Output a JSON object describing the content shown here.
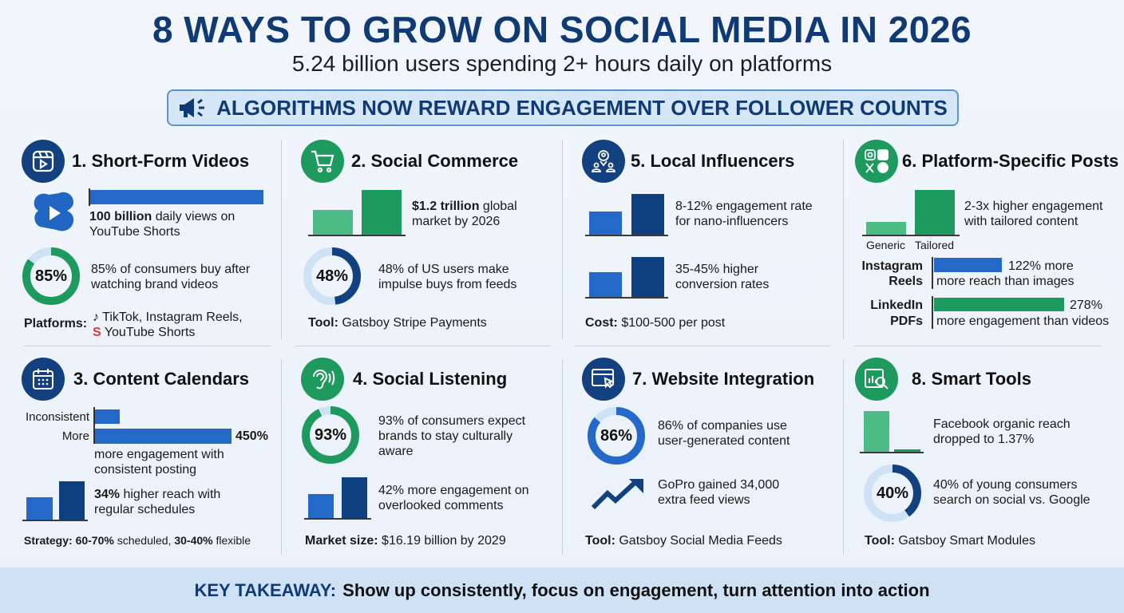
{
  "header": {
    "title": "8 WAYS TO GROW ON SOCIAL MEDIA IN 2026",
    "subtitle": "5.24 billion users spending 2+ hours daily on platforms",
    "banner": "ALGORITHMS NOW REWARD ENGAGEMENT OVER FOLLOWER COUNTS",
    "banner_icon": "megaphone-icon"
  },
  "colors": {
    "navy": "#13407f",
    "blue": "#2468c8",
    "green": "#1f9a5f",
    "light_green": "#4dbb86",
    "track": "#cfe2f5"
  },
  "cards": {
    "c1": {
      "title": "1. Short-Form Videos",
      "icon": "video-reel-icon",
      "stat1_bold": "100 billion",
      "stat1_rest": " daily views on",
      "stat1_line2": "YouTube Shorts",
      "donut_pct": 85,
      "donut_label": "85%",
      "stat2_l1": "85% of consumers buy after",
      "stat2_l2": "watching brand videos",
      "platforms_label": "Platforms:",
      "platforms_l1": "TikTok, Instagram Reels,",
      "platforms_l2": "YouTube Shorts"
    },
    "c2": {
      "title": "2. Social Commerce",
      "icon": "shopping-cart-icon",
      "stat1_bold": "$1.2 trillion",
      "stat1_rest": " global",
      "stat1_line2": "market by 2026",
      "donut_pct": 48,
      "donut_label": "48%",
      "stat2_l1": "48% of US users make",
      "stat2_l2": "impulse buys from feeds",
      "tool_label": "Tool:",
      "tool_value": " Gatsboy Stripe Payments"
    },
    "c3": {
      "title": "3. Content Calendars",
      "icon": "calendar-icon",
      "bar1_label": "Inconsistent",
      "bar2_label": "More",
      "bar2_value": "450%",
      "stat1_l1": "more engagement with",
      "stat1_l2": "consistent posting",
      "stat2_bold": "34%",
      "stat2_rest": " higher reach with",
      "stat2_l2": "regular schedules",
      "strategy_label": "Strategy:",
      "strategy_b1": " 60-70%",
      "strategy_t1": " scheduled, ",
      "strategy_b2": "30-40%",
      "strategy_t2": " flexible"
    },
    "c4": {
      "title": "4. Social Listening",
      "icon": "ear-icon",
      "donut_pct": 93,
      "donut_label": "93%",
      "stat1_l1": "93% of consumers expect",
      "stat1_l2": "brands to stay culturally",
      "stat1_l3": "aware",
      "stat2_l1": "42% more engagement on",
      "stat2_l2": "overlooked comments",
      "market_label": "Market size:",
      "market_value": " $16.19 billion by 2029"
    },
    "c5": {
      "title": "5. Local Influencers",
      "icon": "network-people-icon",
      "stat1_l1": "8-12% engagement rate",
      "stat1_l2": "for nano-influencers",
      "stat2_l1": "35-45% higher",
      "stat2_l2": "conversion rates",
      "cost_label": "Cost:",
      "cost_value": " $100-500 per post"
    },
    "c6": {
      "title": "6. Platform-Specific Posts",
      "icon": "social-logos-icon",
      "bar1_label": "Generic",
      "bar2_label": "Tailored",
      "stat1_l1": "2-3x higher engagement",
      "stat1_l2": "with tailored content",
      "ig_l1": "Instagram",
      "ig_l2": "Reels",
      "ig_value": "122% more",
      "ig_desc": "more reach than images",
      "li_l1": "LinkedIn",
      "li_l2": "PDFs",
      "li_value": "278%",
      "li_desc": "more engagement than videos"
    },
    "c7": {
      "title": "7. Website Integration",
      "icon": "browser-cursor-icon",
      "donut_pct": 86,
      "donut_label": "86%",
      "stat1_l1": "86% of companies use",
      "stat1_l2": "user-generated content",
      "stat2_l1": "GoPro gained 34,000",
      "stat2_l2": "extra feed views",
      "tool_label": "Tool:",
      "tool_value": " Gatsboy Social Media Feeds"
    },
    "c8": {
      "title": "8. Smart Tools",
      "icon": "analytics-search-icon",
      "stat1_l1": "Facebook organic reach",
      "stat1_l2": "dropped to 1.37%",
      "donut_pct": 40,
      "donut_label": "40%",
      "stat2_l1": "40% of young consumers",
      "stat2_l2": "search on social vs. Google",
      "tool_label": "Tool:",
      "tool_value": " Gatsboy Smart Modules"
    }
  },
  "footer": {
    "label": "KEY TAKEAWAY:",
    "text": "Show up consistently, focus on engagement, turn attention into action"
  }
}
